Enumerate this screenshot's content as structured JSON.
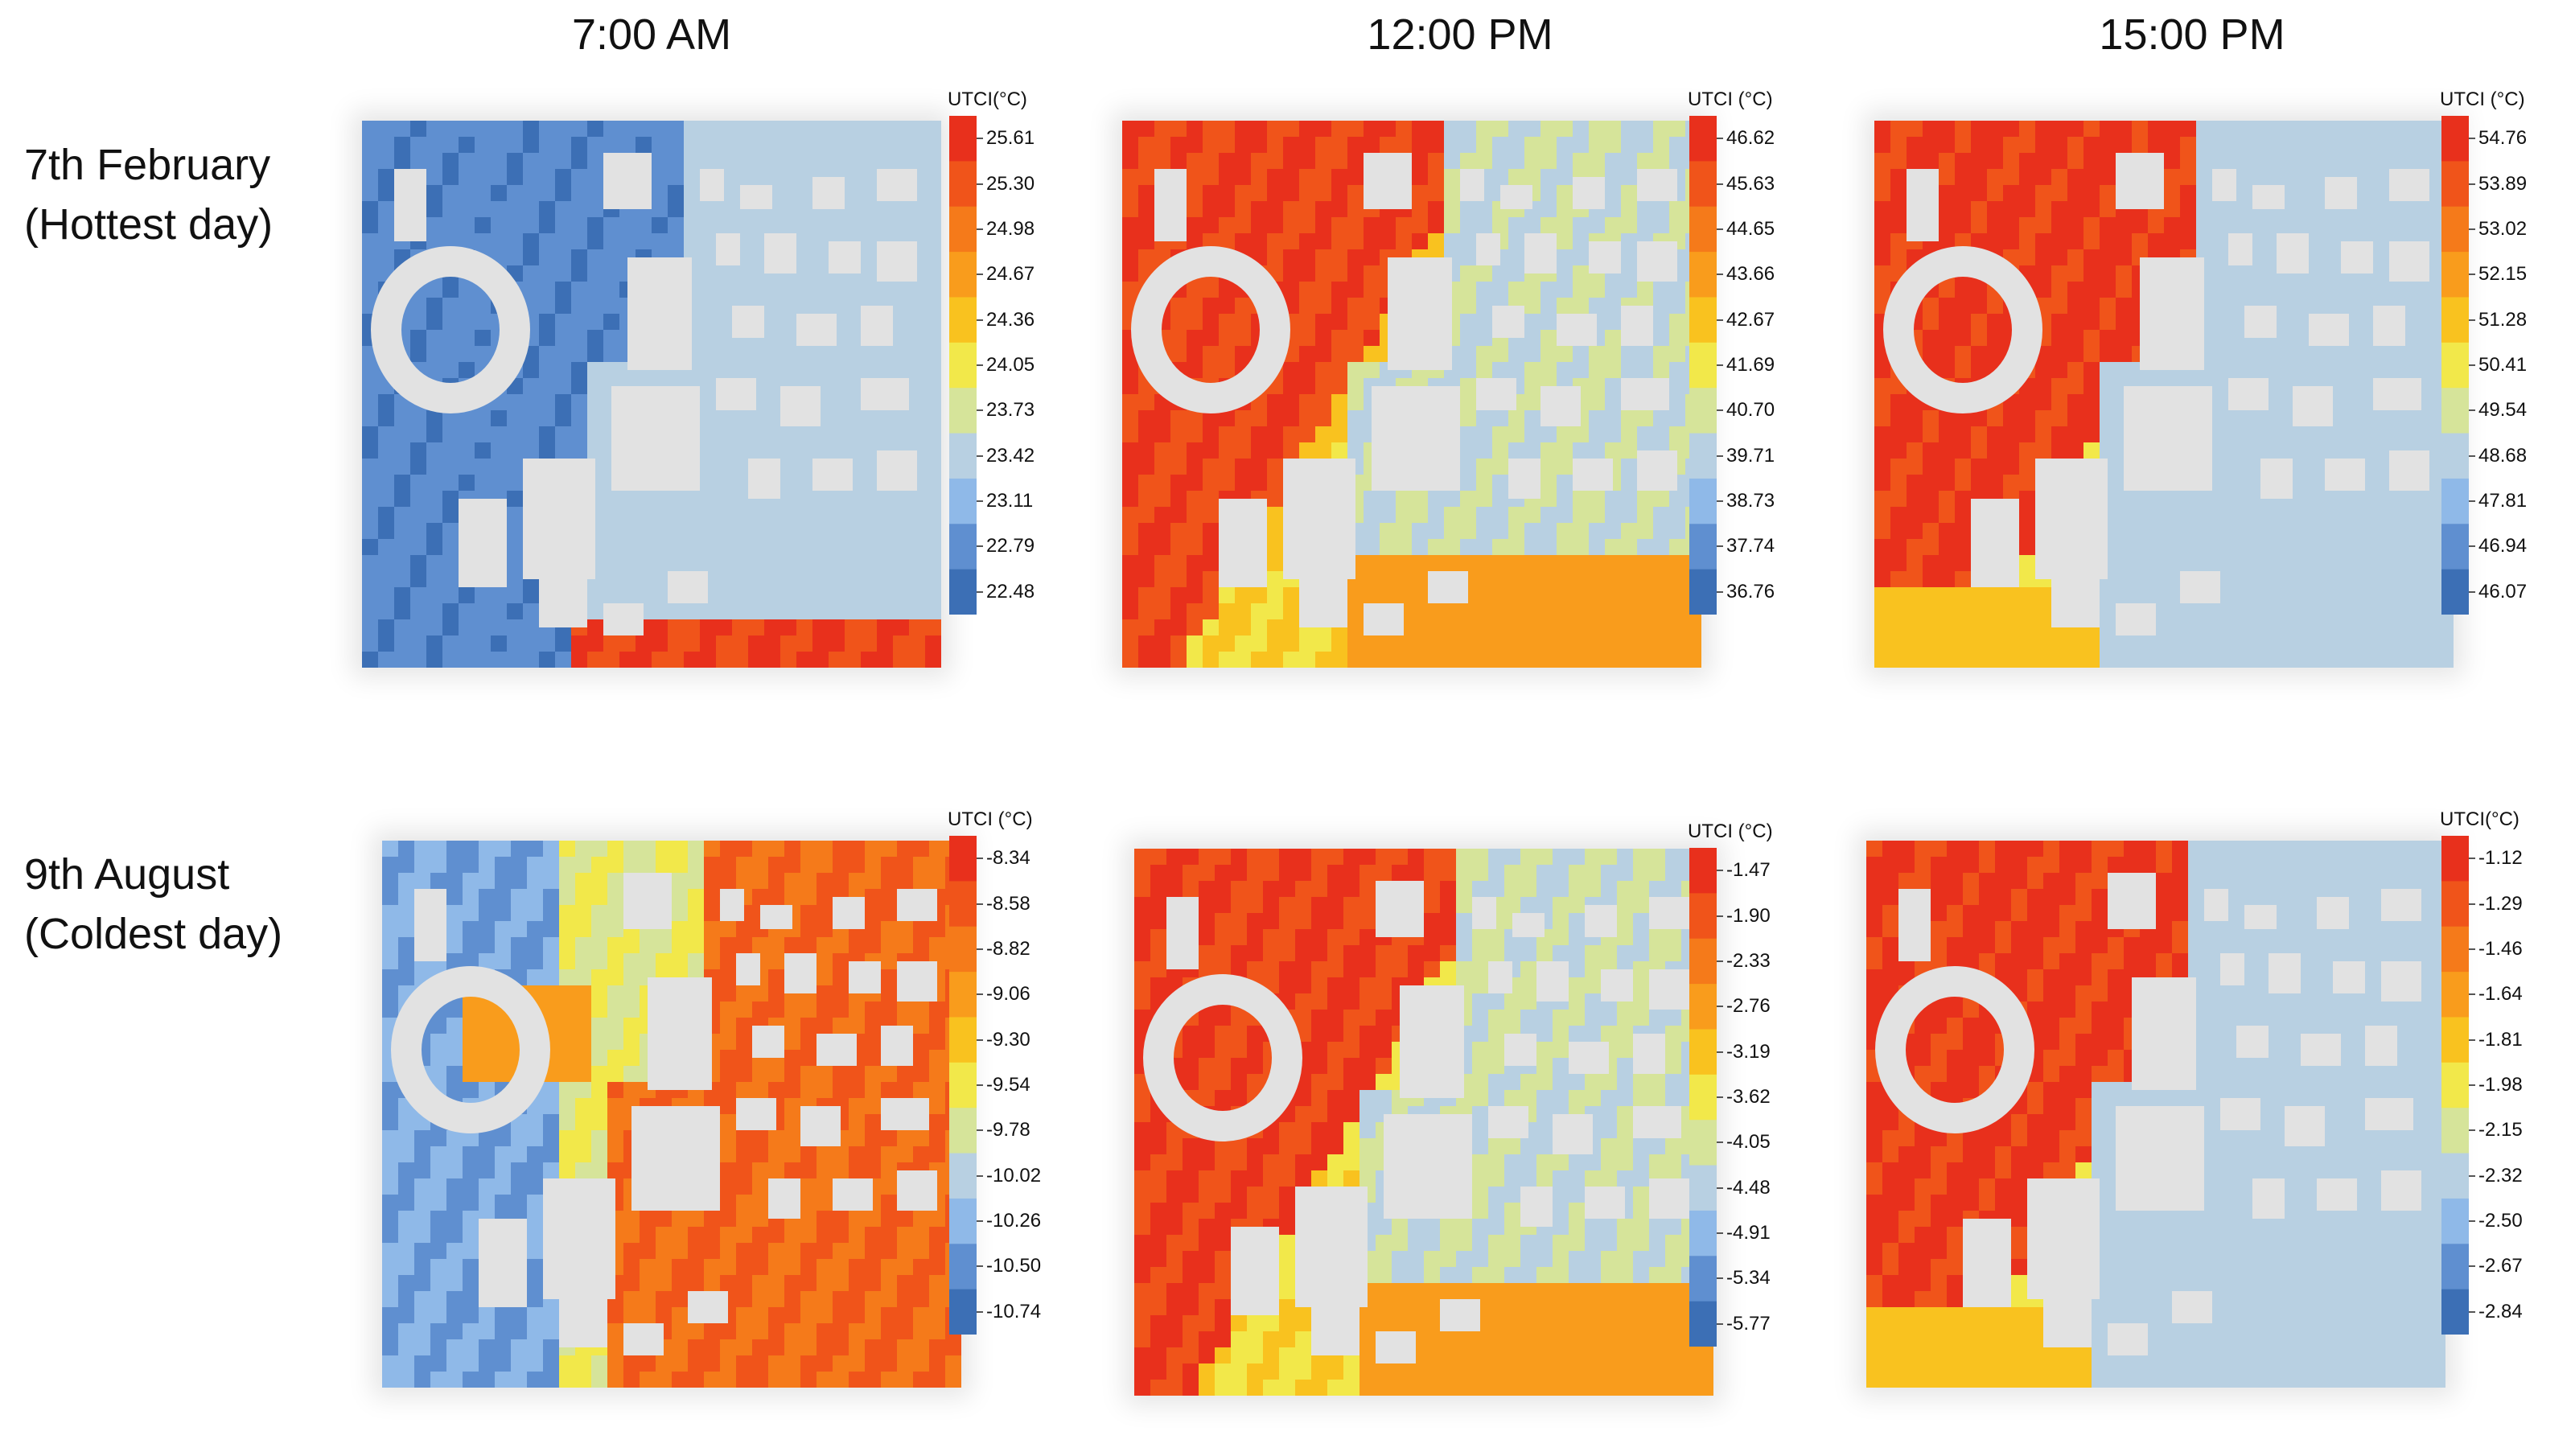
{
  "column_titles": [
    "7:00 AM",
    "12:00 PM",
    "15:00 PM"
  ],
  "row_titles": [
    {
      "line1": "7th February",
      "line2": "(Hottest day)"
    },
    {
      "line1": "9th August",
      "line2": "(Coldest day)"
    }
  ],
  "colors": {
    "scale_high_to_low": [
      "#e8301c",
      "#f0541a",
      "#f57a1a",
      "#f99c1c",
      "#f9c21f",
      "#f2e84a",
      "#d6e49a",
      "#b8d0e2",
      "#8fb9e8",
      "#5f8fd0",
      "#3c6fb5"
    ],
    "building": "#e2e2e2"
  },
  "chart_data": [
    {
      "type": "heatmap",
      "row": "7th February (Hottest day)",
      "time": "7:00 AM",
      "colorbar_title": "UTCI(°C)",
      "ticks": [
        25.61,
        25.3,
        24.98,
        24.67,
        24.36,
        24.05,
        23.73,
        23.42,
        23.11,
        22.79,
        22.48
      ],
      "tick_labels": [
        "25.61",
        "25.30",
        "24.98",
        "24.67",
        "24.36",
        "24.05",
        "23.73",
        "23.42",
        "23.11",
        "22.79",
        "22.48"
      ],
      "range": [
        22.48,
        25.61
      ],
      "pattern": "am_hot"
    },
    {
      "type": "heatmap",
      "row": "7th February (Hottest day)",
      "time": "12:00 PM",
      "colorbar_title": "UTCI (°C)",
      "ticks": [
        46.62,
        45.63,
        44.65,
        43.66,
        42.67,
        41.69,
        40.7,
        39.71,
        38.73,
        37.74,
        36.76
      ],
      "tick_labels": [
        "46.62",
        "45.63",
        "44.65",
        "43.66",
        "42.67",
        "41.69",
        "40.70",
        "39.71",
        "38.73",
        "37.74",
        "36.76"
      ],
      "range": [
        36.76,
        46.62
      ],
      "pattern": "noon"
    },
    {
      "type": "heatmap",
      "row": "7th February (Hottest day)",
      "time": "15:00 PM",
      "colorbar_title": "UTCI (°C)",
      "ticks": [
        54.76,
        53.89,
        53.02,
        52.15,
        51.28,
        50.41,
        49.54,
        48.68,
        47.81,
        46.94,
        46.07
      ],
      "tick_labels": [
        "54.76",
        "53.89",
        "53.02",
        "52.15",
        "51.28",
        "50.41",
        "49.54",
        "48.68",
        "47.81",
        "46.94",
        "46.07"
      ],
      "range": [
        46.07,
        54.76
      ],
      "pattern": "pm"
    },
    {
      "type": "heatmap",
      "row": "9th August (Coldest day)",
      "time": "7:00 AM",
      "colorbar_title": "UTCI (°C)",
      "ticks": [
        -8.34,
        -8.58,
        -8.82,
        -9.06,
        -9.3,
        -9.54,
        -9.78,
        -10.02,
        -10.26,
        -10.5,
        -10.74
      ],
      "tick_labels": [
        "-8.34",
        "-8.58",
        "-8.82",
        "-9.06",
        "-9.30",
        "-9.54",
        "-9.78",
        "-10.02",
        "-10.26",
        "-10.50",
        "-10.74"
      ],
      "range": [
        -10.74,
        -8.34
      ],
      "pattern": "am_cold"
    },
    {
      "type": "heatmap",
      "row": "9th August (Coldest day)",
      "time": "12:00 PM",
      "colorbar_title": "UTCI (°C)",
      "ticks": [
        -1.47,
        -1.9,
        -2.33,
        -2.76,
        -3.19,
        -3.62,
        -4.05,
        -4.48,
        -4.91,
        -5.34,
        -5.77
      ],
      "tick_labels": [
        "-1.47",
        "-1.90",
        "-2.33",
        "-2.76",
        "-3.19",
        "-3.62",
        "-4.05",
        "-4.48",
        "-4.91",
        "-5.34",
        "-5.77"
      ],
      "range": [
        -5.77,
        -1.47
      ],
      "pattern": "noon"
    },
    {
      "type": "heatmap",
      "row": "9th August (Coldest day)",
      "time": "15:00 PM",
      "colorbar_title": "UTCI(°C)",
      "ticks": [
        -1.12,
        -1.29,
        -1.46,
        -1.64,
        -1.81,
        -1.98,
        -2.15,
        -2.32,
        -2.5,
        -2.67,
        -2.84
      ],
      "tick_labels": [
        "-1.12",
        "-1.29",
        "-1.46",
        "-1.64",
        "-1.81",
        "-1.98",
        "-2.15",
        "-2.32",
        "-2.50",
        "-2.67",
        "-2.84"
      ],
      "range": [
        -2.84,
        -1.12
      ],
      "pattern": "pm"
    }
  ]
}
